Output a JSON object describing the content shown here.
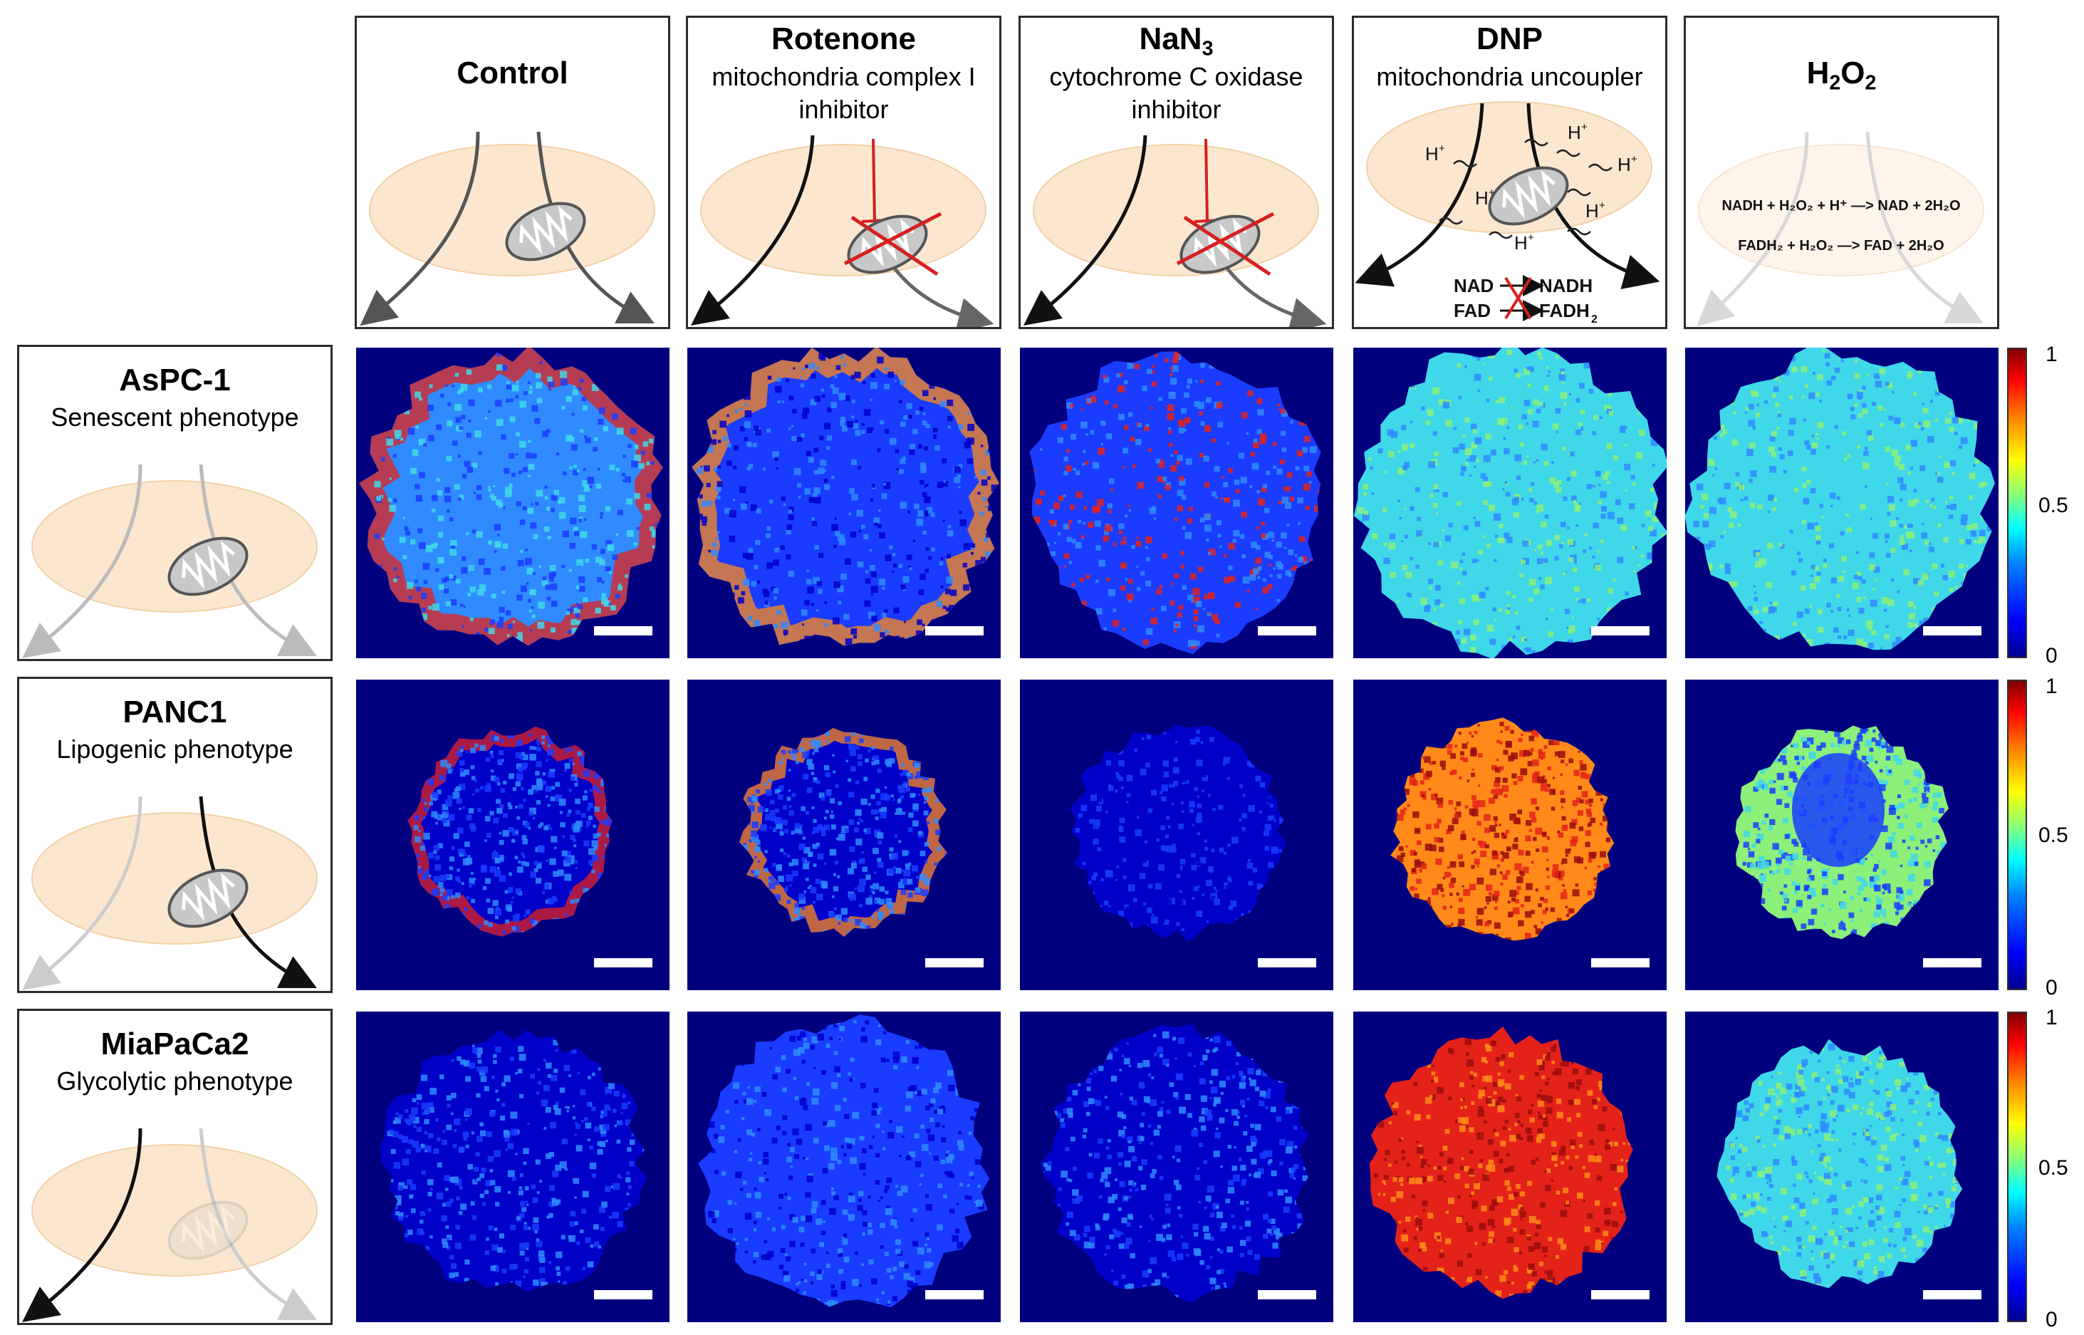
{
  "columns": [
    {
      "title": "Control",
      "subtitle_lines": []
    },
    {
      "title": "Rotenone",
      "subtitle_lines": [
        "mitochondria complex I",
        "inhibitor"
      ]
    },
    {
      "title": "NaN",
      "title_sub": "3",
      "subtitle_lines": [
        "cytochrome C oxidase",
        "inhibitor"
      ]
    },
    {
      "title": "DNP",
      "subtitle_lines": [
        "mitochondria uncoupler"
      ]
    },
    {
      "title": "H",
      "title_sub": "2",
      "title_rest": "O",
      "title_sub2": "2",
      "subtitle_lines": []
    }
  ],
  "rows": [
    {
      "title": "AsPC-1",
      "subtitle": "Senescent phenotype"
    },
    {
      "title": "PANC1",
      "subtitle": "Lipogenic phenotype"
    },
    {
      "title": "MiaPaCa2",
      "subtitle": "Glycolytic phenotype"
    }
  ],
  "dnp_labels": {
    "proton": "H",
    "nad": "NAD",
    "nadh": "NADH",
    "fad": "FAD",
    "fadh": "FADH",
    "fadh_sub": "2"
  },
  "h2o2_equations": {
    "line1": "NADH + H₂O₂ + H⁺ —> NAD + 2H₂O",
    "line2": "FADH₂ + H₂O₂ —> FAD + 2H₂O"
  },
  "colorbar": {
    "max_label": "1",
    "mid_label": "0.5",
    "min_label": "0"
  },
  "colors": {
    "background_blue": "#00007f",
    "cell_fill": "#fbe7cf",
    "inhibitor_red": "#d62020"
  }
}
